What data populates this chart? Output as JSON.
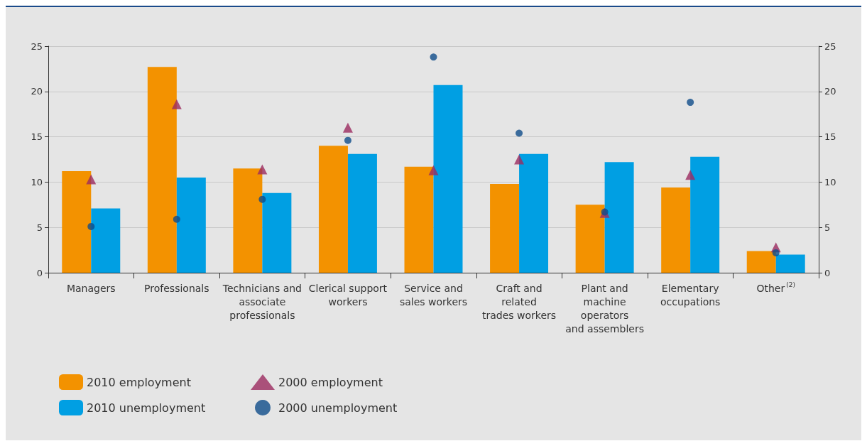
{
  "chart_data": {
    "type": "bar",
    "categories": [
      "Managers",
      "Professionals",
      "Technicians and\nassociate\nprofessionals",
      "Clerical support\nworkers",
      "Service and\nsales workers",
      "Craft and\nrelated\ntrades workers",
      "Plant and\nmachine\noperators\nand assemblers",
      "Elementary\noccupations",
      "Other$^{(2)}$"
    ],
    "series": [
      {
        "name": "2010 employment",
        "color": "#f39200",
        "values": [
          11.2,
          22.7,
          11.5,
          14.0,
          11.7,
          9.8,
          7.5,
          9.4,
          2.4
        ]
      },
      {
        "name": "2010 unemployment",
        "color": "#009fe3",
        "values": [
          7.1,
          10.5,
          8.8,
          13.1,
          20.7,
          13.1,
          12.2,
          12.8,
          2.0
        ]
      },
      {
        "name": "2000 employment",
        "type": "scatter",
        "marker": "triangle",
        "color": "#9b2a5f",
        "x": [
          "Managers",
          "Professionals",
          "Technicians and\nassociate\nprofessionals",
          "Clerical support\nworkers",
          "Service and\nsales workers",
          "Craft and\nrelated\ntrades workers",
          "Plant and\nmachine\noperators\nand assemblers",
          "Elementary\noccupations",
          "Other$^{(2)}$"
        ],
        "values": [
          10.3,
          18.6,
          11.4,
          16.0,
          11.3,
          12.5,
          6.6,
          10.8,
          2.8
        ]
      },
      {
        "name": "2000 unemployment",
        "type": "scatter",
        "marker": "circle",
        "color": "#0f4c8a",
        "x": [
          "Managers",
          "Professionals",
          "Technicians and\nassociate\nprofessionals",
          "Clerical support\nworkers",
          "Service and\nsales workers",
          "Craft and\nrelated\ntrades workers",
          "Plant and\nmachine\noperators\nand assemblers",
          "Elementary\noccupations",
          "Other$^{(2)}$"
        ],
        "values": [
          5.1,
          5.9,
          8.1,
          14.6,
          23.8,
          15.4,
          6.7,
          18.8,
          2.2
        ]
      }
    ],
    "ylim": [
      0,
      25
    ],
    "yticks": [
      0,
      5,
      10,
      15,
      20,
      25
    ],
    "y2lim": [
      0,
      25
    ],
    "y2ticks": [
      0,
      5,
      10,
      15,
      20,
      25
    ],
    "grid": "y",
    "legend": "bottom left"
  }
}
